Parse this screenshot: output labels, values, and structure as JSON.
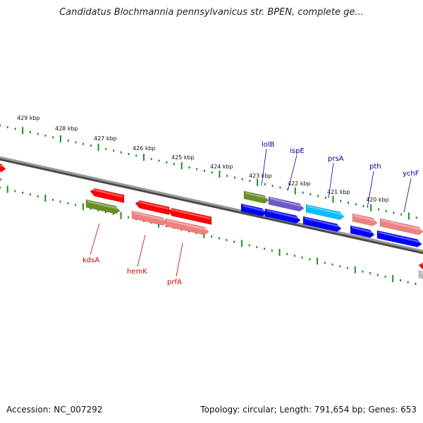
{
  "title": "Candidatus Blochmannia pennsylvanicus str. BPEN, complete ge...",
  "footer": {
    "accession": "Accession: NC_007292",
    "summary": "Topology: circular; Length: 791,654 bp; Genes: 653"
  },
  "colors": {
    "backbone": "#808080",
    "ticks": "#228B22",
    "red_gene": "#ff0000",
    "pink_gene": "#f08080",
    "olive_gene": "#6b8e23",
    "blue_gene": "#0000ff",
    "purple_gene": "#6a5acd",
    "cyan_gene": "#00bfff",
    "red_label": "#cc0000",
    "blue_label": "#000099"
  },
  "kbp_labels": [
    "429 kbp",
    "428 kbp",
    "427 kbp",
    "426 kbp",
    "425 kbp",
    "424 kbp",
    "423 kbp",
    "422 kbp",
    "421 kbp",
    "420 kbp"
  ],
  "gene_labels": {
    "reverse": [
      "kdsA",
      "hemK",
      "prfA"
    ],
    "forward": [
      "lolB",
      "ispE",
      "prsA",
      "pth",
      "ychF"
    ]
  }
}
